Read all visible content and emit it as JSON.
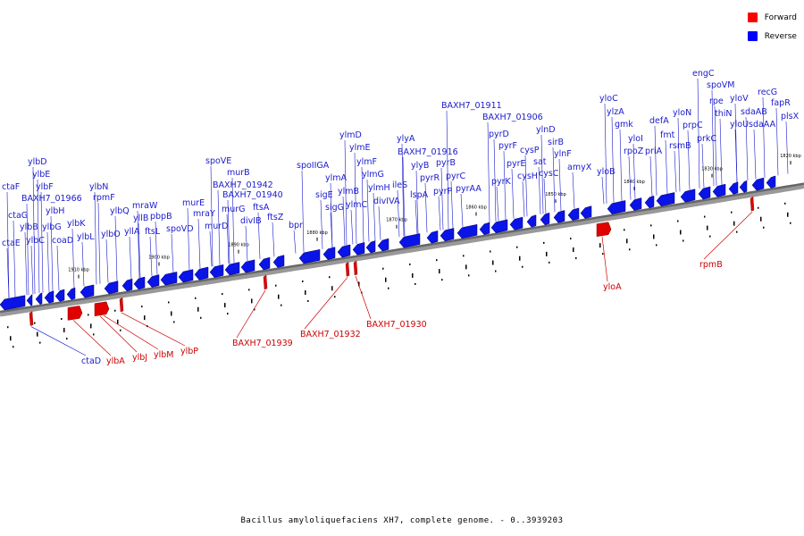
{
  "legend": {
    "items": [
      {
        "label": "Forward",
        "color": "#ff0000"
      },
      {
        "label": "Reverse",
        "color": "#0000ff"
      }
    ]
  },
  "caption": "Bacillus amyloliquefaciens XH7, complete genome. - 0..3939203",
  "colors": {
    "reverse": "#0a14e6",
    "forward": "#e00000",
    "label_reverse": "#1a1acc",
    "label_forward": "#cc0000",
    "backbone": "#666666"
  },
  "scale_labels": [
    "1910 kbp",
    "1900 kbp",
    "1890 kbp",
    "1880 kbp",
    "1870 kbp",
    "1860 kbp",
    "1850 kbp",
    "1840 kbp",
    "1830 kbp",
    "1820 kbp"
  ],
  "reverse_genes": [
    "ctaF",
    "ctaG",
    "ctaE",
    "ylbD",
    "ylbE",
    "ylbB",
    "ylbF",
    "ylbC",
    "BAXH7_01966",
    "ylbG",
    "ylbH",
    "coaD",
    "ylbK",
    "ylbL",
    "ylbN",
    "rpmF",
    "ylbO",
    "ylbQ",
    "yllA",
    "mraW",
    "yllB",
    "ftsL",
    "pbpB",
    "spoVD",
    "murE",
    "mraY",
    "murD",
    "spoVE",
    "murB",
    "murG",
    "BAXH7_01942",
    "BAXH7_01940",
    "divIB",
    "ftsA",
    "ftsZ",
    "bpr",
    "spoIIGA",
    "sigE",
    "sigG",
    "ylmA",
    "ylmB",
    "ylmC",
    "ylmD",
    "ylmE",
    "ylmF",
    "ylmG",
    "ylmH",
    "divIVA",
    "ileS",
    "ylyA",
    "BAXH7_01916",
    "ylyB",
    "lspA",
    "pyrR",
    "pyrP",
    "pyrB",
    "pyrC",
    "pyrAA",
    "BAXH7_01911",
    "BAXH7_01906",
    "pyrK",
    "pyrD",
    "pyrF",
    "pyrE",
    "cysH",
    "cysP",
    "sat",
    "ylnD",
    "cysC",
    "sirB",
    "ylnF",
    "amyX",
    "yloB",
    "yloC",
    "ylzA",
    "gmk",
    "yloI",
    "rpoZ",
    "priA",
    "defA",
    "fmt",
    "rsmB",
    "yloN",
    "prpC",
    "prkC",
    "engC",
    "spoVM",
    "rpe",
    "thiN",
    "yloV",
    "yloU",
    "sdaAB",
    "sdaAA",
    "recG",
    "fapR",
    "plsX"
  ],
  "forward_genes": [
    "ctaD",
    "ylbA",
    "ylbJ",
    "ylbM",
    "ylbP",
    "BAXH7_01939",
    "BAXH7_01932",
    "BAXH7_01930",
    "yloA",
    "rpmB"
  ]
}
